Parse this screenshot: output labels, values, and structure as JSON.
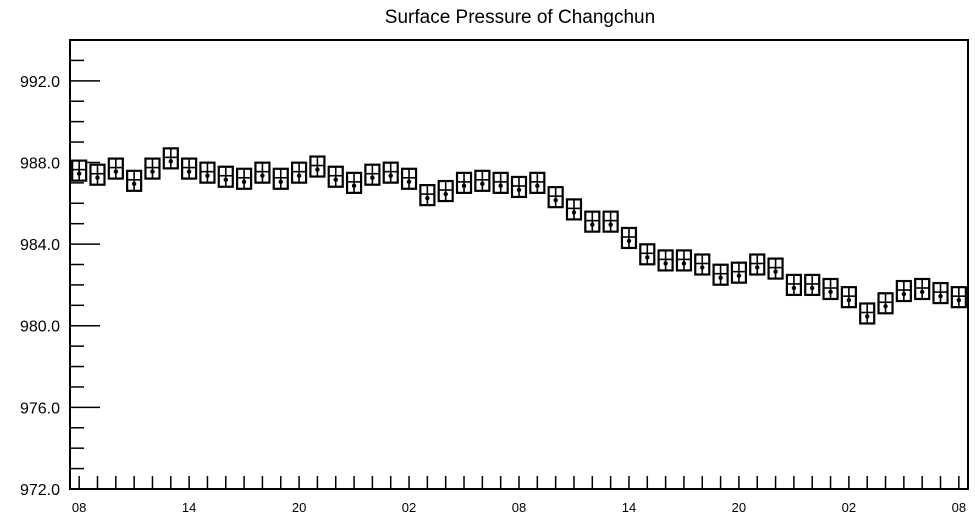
{
  "chart_data": {
    "type": "scatter",
    "title": "Surface Pressure of Changchun",
    "xlabel": "",
    "ylabel": "",
    "ylim": [
      972.0,
      994.0
    ],
    "yticks": [
      "972.0",
      "976.0",
      "980.0",
      "984.0",
      "988.0",
      "992.0"
    ],
    "ytick_values": [
      972,
      976,
      980,
      984,
      988,
      992
    ],
    "xlim": [
      0,
      49
    ],
    "xticks": [
      "08",
      "14",
      "20",
      "02",
      "08",
      "14",
      "20",
      "02",
      "08"
    ],
    "xtick_positions": [
      0.5,
      6.5,
      12.5,
      18.5,
      24.5,
      30.5,
      36.5,
      42.5,
      48.5
    ],
    "grid": false,
    "marker": "boxed-cross",
    "series": [
      {
        "x": [
          0.5,
          1.5,
          2.5,
          3.5,
          4.5,
          5.5,
          6.5,
          7.5,
          8.5,
          9.5,
          10.5,
          11.5,
          12.5,
          13.5,
          14.5,
          15.5,
          16.5,
          17.5,
          18.5,
          19.5,
          20.5,
          21.5,
          22.5,
          23.5,
          24.5,
          25.5,
          26.5,
          27.5,
          28.5,
          29.5,
          30.5,
          31.5,
          32.5,
          33.5,
          34.5,
          35.5,
          36.5,
          37.5,
          38.5,
          39.5,
          40.5,
          41.5,
          42.5,
          43.5,
          44.5,
          45.5,
          46.5,
          47.5,
          48.5
        ],
        "values": [
          987.6,
          987.4,
          987.7,
          987.1,
          987.7,
          988.2,
          987.7,
          987.5,
          987.3,
          987.2,
          987.5,
          987.2,
          987.5,
          987.8,
          987.3,
          987.0,
          987.4,
          987.5,
          987.2,
          986.4,
          986.6,
          987.0,
          987.1,
          987.0,
          986.8,
          987.0,
          986.3,
          985.7,
          985.1,
          985.1,
          984.3,
          983.5,
          983.2,
          983.2,
          983.0,
          982.5,
          982.6,
          983.0,
          982.8,
          982.0,
          982.0,
          981.8,
          981.4,
          980.6,
          981.1,
          981.7,
          981.8,
          981.6,
          981.4
        ]
      }
    ]
  }
}
